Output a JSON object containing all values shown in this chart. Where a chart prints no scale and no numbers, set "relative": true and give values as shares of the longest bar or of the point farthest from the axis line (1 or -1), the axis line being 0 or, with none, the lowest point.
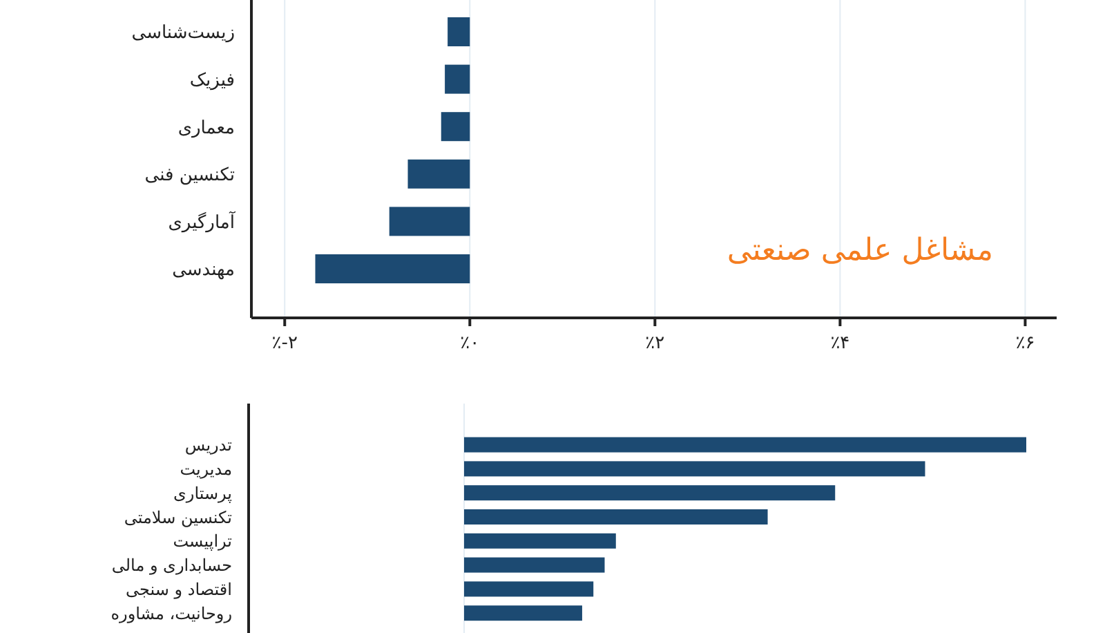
{
  "chart_data": [
    {
      "type": "bar",
      "orientation": "horizontal",
      "title": "مشاغل علمی صنعتی",
      "categories": [
        "زیست‌شناسی",
        "فیزیک",
        "معماری",
        "تکنسین فنی",
        "آمارگیری",
        "مهندسی"
      ],
      "values": [
        -0.24,
        -0.27,
        -0.31,
        -0.67,
        -0.87,
        -1.67
      ],
      "color": "#1c4a72",
      "xlim": [
        -2.36,
        6.34
      ],
      "xticks": [
        {
          "value": -2,
          "label": "٪-۲"
        },
        {
          "value": 0,
          "label": "٪۰"
        },
        {
          "value": 2,
          "label": "٪۲"
        },
        {
          "value": 4,
          "label": "٪۴"
        },
        {
          "value": 6,
          "label": "٪۶"
        }
      ],
      "grid": "x"
    },
    {
      "type": "bar",
      "orientation": "horizontal",
      "relative": true,
      "categories": [
        "تدریس",
        "مدیریت",
        "پرستاری",
        "تکنسین سلامتی",
        "تراپیست",
        "حسابداری و مالی",
        "اقتصاد و سنجی",
        "روحانیت، مشاوره"
      ],
      "values": [
        1,
        0.82,
        0.66,
        0.54,
        0.27,
        0.25,
        0.23,
        0.21
      ],
      "color": "#1c4a72"
    }
  ]
}
